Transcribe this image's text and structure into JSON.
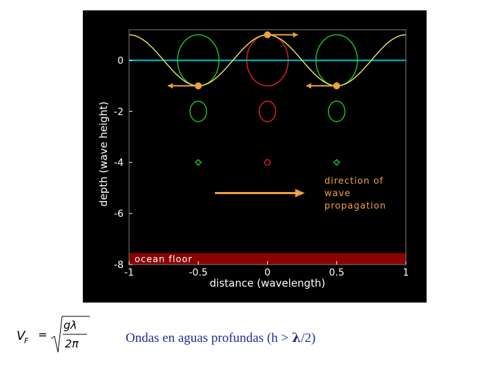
{
  "figure": {
    "background": "#000000",
    "x_axis": {
      "label": "distance (wavelength)",
      "ticks": [
        "-1",
        "-0.5",
        "0",
        "0.5",
        "1"
      ],
      "range": [
        -1,
        1
      ]
    },
    "y_axis": {
      "label": "depth (wave height)",
      "ticks": [
        "0",
        "-2",
        "-4",
        "-6",
        "-8"
      ],
      "range": [
        -8,
        1.2
      ]
    },
    "ocean_floor": {
      "label": "ocean floor",
      "depth": -7.8,
      "color": "#8b0000"
    },
    "direction_text": [
      "direction of",
      "wave",
      "propagation"
    ],
    "colors": {
      "wave": "#e8e060",
      "mean_level": "#00c8d8",
      "green_orbit": "#20c020",
      "red_orbit": "#e02020",
      "arrow": "#f0a040",
      "axes": "#ffffff",
      "frame": "#808080"
    },
    "orbits": [
      {
        "x": -0.5,
        "y": 0,
        "r": 1.0,
        "color": "green"
      },
      {
        "x": 0,
        "y": 0,
        "r": 1.0,
        "color": "red"
      },
      {
        "x": 0.5,
        "y": 0,
        "r": 1.0,
        "color": "green"
      },
      {
        "x": -0.5,
        "y": -2,
        "r": 0.4,
        "color": "green"
      },
      {
        "x": 0,
        "y": -2,
        "r": 0.4,
        "color": "red"
      },
      {
        "x": 0.5,
        "y": -2,
        "r": 0.4,
        "color": "green"
      },
      {
        "x": -0.5,
        "y": -4,
        "r": 0.12,
        "color": "green"
      },
      {
        "x": 0,
        "y": -4,
        "r": 0.12,
        "color": "red"
      },
      {
        "x": 0.5,
        "y": -4,
        "r": 0.12,
        "color": "green"
      }
    ],
    "particles": [
      {
        "x": -0.5,
        "y": -1,
        "arrow": "left"
      },
      {
        "x": 0,
        "y": 1,
        "arrow": "right"
      },
      {
        "x": 0.5,
        "y": -1,
        "arrow": "left"
      }
    ]
  },
  "formula": {
    "lhs": "V",
    "sub": "F",
    "eq": "=",
    "num": "gλ",
    "den": "2π"
  },
  "caption": {
    "prefix": "Ondas en aguas profundas (h > ",
    "lambda": "λ",
    "suffix": "/2)"
  }
}
